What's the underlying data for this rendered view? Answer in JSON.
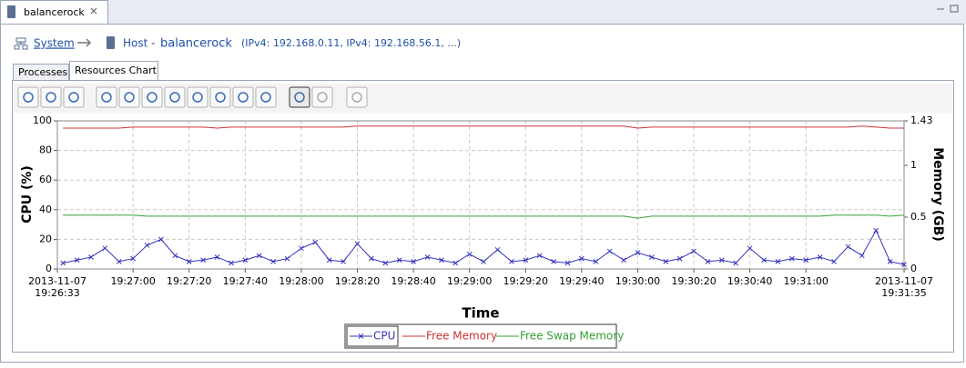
{
  "editor_tab": {
    "title": "balancerock"
  },
  "breadcrumb": {
    "root": "System",
    "host_prefix": "Host -",
    "host_name": "balancerock",
    "addresses": "(IPv4: 192.168.0.11, IPv4: 192.168.56.1, ...)"
  },
  "tabs": [
    "Processes",
    "Resources Chart"
  ],
  "chart_data": {
    "type": "line",
    "x_label": "Time",
    "y_label": "CPU (%)",
    "y2_label": "Memory (GB)",
    "x": [
      "19:26:35",
      "19:26:40",
      "19:26:45",
      "19:26:50",
      "19:26:55",
      "19:27:00",
      "19:27:05",
      "19:27:10",
      "19:27:15",
      "19:27:20",
      "19:27:25",
      "19:27:30",
      "19:27:35",
      "19:27:40",
      "19:27:45",
      "19:27:50",
      "19:27:55",
      "19:28:00",
      "19:28:05",
      "19:28:10",
      "19:28:15",
      "19:28:20",
      "19:28:25",
      "19:28:30",
      "19:28:35",
      "19:28:40",
      "19:28:45",
      "19:28:50",
      "19:28:55",
      "19:29:00",
      "19:29:05",
      "19:29:10",
      "19:29:15",
      "19:29:20",
      "19:29:25",
      "19:29:30",
      "19:29:35",
      "19:29:40",
      "19:29:45",
      "19:29:50",
      "19:29:55",
      "19:30:00",
      "19:30:05",
      "19:30:10",
      "19:30:15",
      "19:30:20",
      "19:30:25",
      "19:30:30",
      "19:30:35",
      "19:30:40",
      "19:30:45",
      "19:30:50",
      "19:30:55",
      "19:31:00",
      "19:31:05",
      "19:31:10",
      "19:31:15",
      "19:31:20",
      "19:31:25",
      "19:31:30",
      "19:31:35"
    ],
    "xlim": [
      "19:26:33",
      "19:31:35"
    ],
    "xticks": [
      {
        "value": "19:26:33",
        "label": [
          "2013-11-07",
          "19:26:33"
        ]
      },
      "19:27:00",
      "19:27:20",
      "19:27:40",
      "19:28:00",
      "19:28:20",
      "19:28:40",
      "19:29:00",
      "19:29:20",
      "19:29:40",
      "19:30:00",
      "19:30:20",
      "19:30:40",
      "19:31:00",
      {
        "value": "19:31:35",
        "label": [
          "2013-11-07",
          "19:31:35"
        ]
      }
    ],
    "ylim": [
      0,
      100
    ],
    "yticks": [
      0,
      20,
      40,
      60,
      80,
      100
    ],
    "y2lim": [
      0,
      1.43
    ],
    "y2ticks": [
      0,
      0.5,
      1,
      1.43
    ],
    "grid": true,
    "legend": "bottom",
    "series": [
      {
        "name": "CPU",
        "color": "#3333bb",
        "marker": "x",
        "values": [
          4,
          6,
          8,
          14,
          5,
          7,
          16,
          20,
          9,
          5,
          6,
          8,
          4,
          6,
          9,
          5,
          7,
          14,
          18,
          6,
          5,
          17,
          7,
          4,
          6,
          5,
          8,
          6,
          4,
          10,
          5,
          13,
          5,
          6,
          9,
          5,
          4,
          7,
          5,
          12,
          6,
          11,
          8,
          5,
          7,
          12,
          5,
          6,
          4,
          14,
          6,
          5,
          7,
          6,
          8,
          5,
          15,
          9,
          26,
          5,
          3
        ]
      },
      {
        "name": "Free Memory",
        "color": "#cc3333",
        "axis": "y2",
        "values": [
          1.36,
          1.36,
          1.36,
          1.36,
          1.36,
          1.37,
          1.37,
          1.37,
          1.37,
          1.37,
          1.37,
          1.36,
          1.37,
          1.37,
          1.37,
          1.37,
          1.37,
          1.37,
          1.37,
          1.37,
          1.37,
          1.38,
          1.38,
          1.38,
          1.38,
          1.38,
          1.38,
          1.38,
          1.38,
          1.38,
          1.38,
          1.38,
          1.38,
          1.38,
          1.38,
          1.38,
          1.38,
          1.38,
          1.38,
          1.38,
          1.38,
          1.36,
          1.37,
          1.37,
          1.37,
          1.37,
          1.37,
          1.37,
          1.37,
          1.37,
          1.37,
          1.37,
          1.37,
          1.37,
          1.37,
          1.37,
          1.37,
          1.38,
          1.37,
          1.36,
          1.36
        ]
      },
      {
        "name": "Free Swap Memory",
        "color": "#33a033",
        "axis": "y2",
        "values": [
          0.52,
          0.52,
          0.52,
          0.52,
          0.52,
          0.52,
          0.51,
          0.51,
          0.51,
          0.51,
          0.51,
          0.51,
          0.51,
          0.51,
          0.51,
          0.51,
          0.51,
          0.51,
          0.51,
          0.51,
          0.51,
          0.51,
          0.51,
          0.51,
          0.51,
          0.51,
          0.51,
          0.51,
          0.51,
          0.51,
          0.51,
          0.51,
          0.51,
          0.51,
          0.51,
          0.51,
          0.51,
          0.51,
          0.51,
          0.51,
          0.51,
          0.49,
          0.51,
          0.51,
          0.51,
          0.51,
          0.51,
          0.51,
          0.51,
          0.51,
          0.51,
          0.51,
          0.51,
          0.51,
          0.51,
          0.52,
          0.52,
          0.52,
          0.52,
          0.51,
          0.52
        ]
      }
    ]
  }
}
